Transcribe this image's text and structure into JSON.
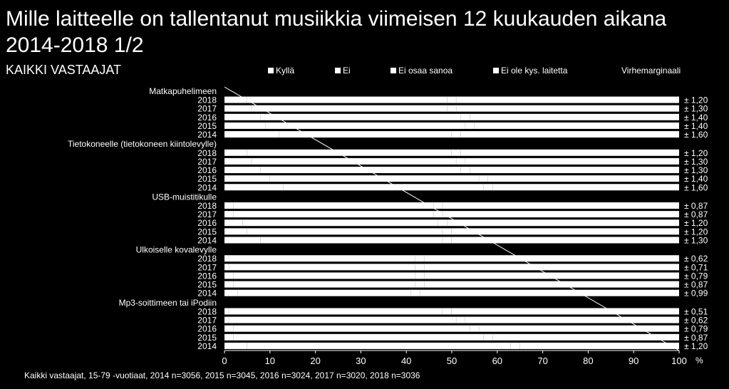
{
  "title": "Mille laitteelle on tallentanut musiikkia viimeisen 12 kuukauden aikana 2014-2018  1/2",
  "subtitle": "KAIKKI VASTAAJAT",
  "footer": "Kaikki vastaajat, 15-79 -vuotiaat, 2014 n=3056, 2015 n=3045, 2016 n=3024, 2017 n=3020, 2018 n=3036",
  "legend": {
    "items": [
      "Kyllä",
      "Ei",
      "Ei osaa sanoa",
      "Ei ole kys. laitetta"
    ],
    "margin_label": "Virhemarginaali"
  },
  "colors": {
    "background": "#000000",
    "bars": "#ffffff",
    "text": "#ffffff"
  },
  "chart_data": {
    "type": "bar",
    "orientation": "horizontal",
    "stacked": true,
    "xlim": [
      0,
      100
    ],
    "xticks": [
      0,
      10,
      20,
      30,
      40,
      50,
      60,
      70,
      80,
      90,
      100
    ],
    "xunit": "%",
    "series_names": [
      "Kyllä",
      "Ei",
      "Ei osaa sanoa",
      "Ei ole kys. laitetta"
    ],
    "groups": [
      {
        "name": "Matkapuhelimeen",
        "rows": [
          {
            "year": "2018",
            "values": [
              5,
              44,
              2,
              49
            ],
            "margin": "± 1,20"
          },
          {
            "year": "2017",
            "values": [
              6,
              43,
              2,
              49
            ],
            "margin": "± 1,30"
          },
          {
            "year": "2016",
            "values": [
              8,
              44,
              2,
              46
            ],
            "margin": "± 1,40"
          },
          {
            "year": "2015",
            "values": [
              9,
              44,
              2,
              45
            ],
            "margin": "± 1,40"
          },
          {
            "year": "2014",
            "values": [
              12,
              38,
              2,
              48
            ],
            "margin": "± 1,60"
          }
        ]
      },
      {
        "name": "Tietokoneelle (tietokoneen kiintolevylle)",
        "rows": [
          {
            "year": "2018",
            "values": [
              5,
              45,
              2,
              48
            ],
            "margin": "± 1,20"
          },
          {
            "year": "2017",
            "values": [
              6,
              45,
              2,
              47
            ],
            "margin": "± 1,30"
          },
          {
            "year": "2016",
            "values": [
              8,
              44,
              2,
              46
            ],
            "margin": "± 1,30"
          },
          {
            "year": "2015",
            "values": [
              10,
              46,
              2,
              42
            ],
            "margin": "± 1,40"
          },
          {
            "year": "2014",
            "values": [
              13,
              44,
              2,
              41
            ],
            "margin": "± 1,60"
          }
        ]
      },
      {
        "name": "USB-muistitikulle",
        "rows": [
          {
            "year": "2018",
            "values": [
              2,
              44,
              2,
              52
            ],
            "margin": "± 0,87"
          },
          {
            "year": "2017",
            "values": [
              2,
              44,
              2,
              52
            ],
            "margin": "± 0,87"
          },
          {
            "year": "2016",
            "values": [
              4,
              43,
              2,
              51
            ],
            "margin": "± 1,20"
          },
          {
            "year": "2015",
            "values": [
              5,
              43,
              2,
              50
            ],
            "margin": "± 1,20"
          },
          {
            "year": "2014",
            "values": [
              8,
              40,
              2,
              50
            ],
            "margin": "± 1,30"
          }
        ]
      },
      {
        "name": "Ulkoiselle kovalevylle",
        "rows": [
          {
            "year": "2018",
            "values": [
              1,
              41,
              2,
              56
            ],
            "margin": "± 0,62"
          },
          {
            "year": "2017",
            "values": [
              1,
              41,
              2,
              56
            ],
            "margin": "± 0,71"
          },
          {
            "year": "2016",
            "values": [
              2,
              40,
              2,
              56
            ],
            "margin": "± 0,79"
          },
          {
            "year": "2015",
            "values": [
              2,
              40,
              2,
              56
            ],
            "margin": "± 0,87"
          },
          {
            "year": "2014",
            "values": [
              3,
              38,
              2,
              57
            ],
            "margin": "± 0,99"
          }
        ]
      },
      {
        "name": "Mp3-soittimeen tai iPodiin",
        "rows": [
          {
            "year": "2018",
            "values": [
              1,
              47,
              2,
              50
            ],
            "margin": "± 0,51"
          },
          {
            "year": "2017",
            "values": [
              1,
              50,
              2,
              47
            ],
            "margin": "± 0,62"
          },
          {
            "year": "2016",
            "values": [
              2,
              52,
              2,
              44
            ],
            "margin": "± 0,79"
          },
          {
            "year": "2015",
            "values": [
              2,
              55,
              2,
              41
            ],
            "margin": "± 0,87"
          },
          {
            "year": "2014",
            "values": [
              5,
              58,
              2,
              35
            ],
            "margin": "± 1,20"
          }
        ]
      }
    ]
  }
}
